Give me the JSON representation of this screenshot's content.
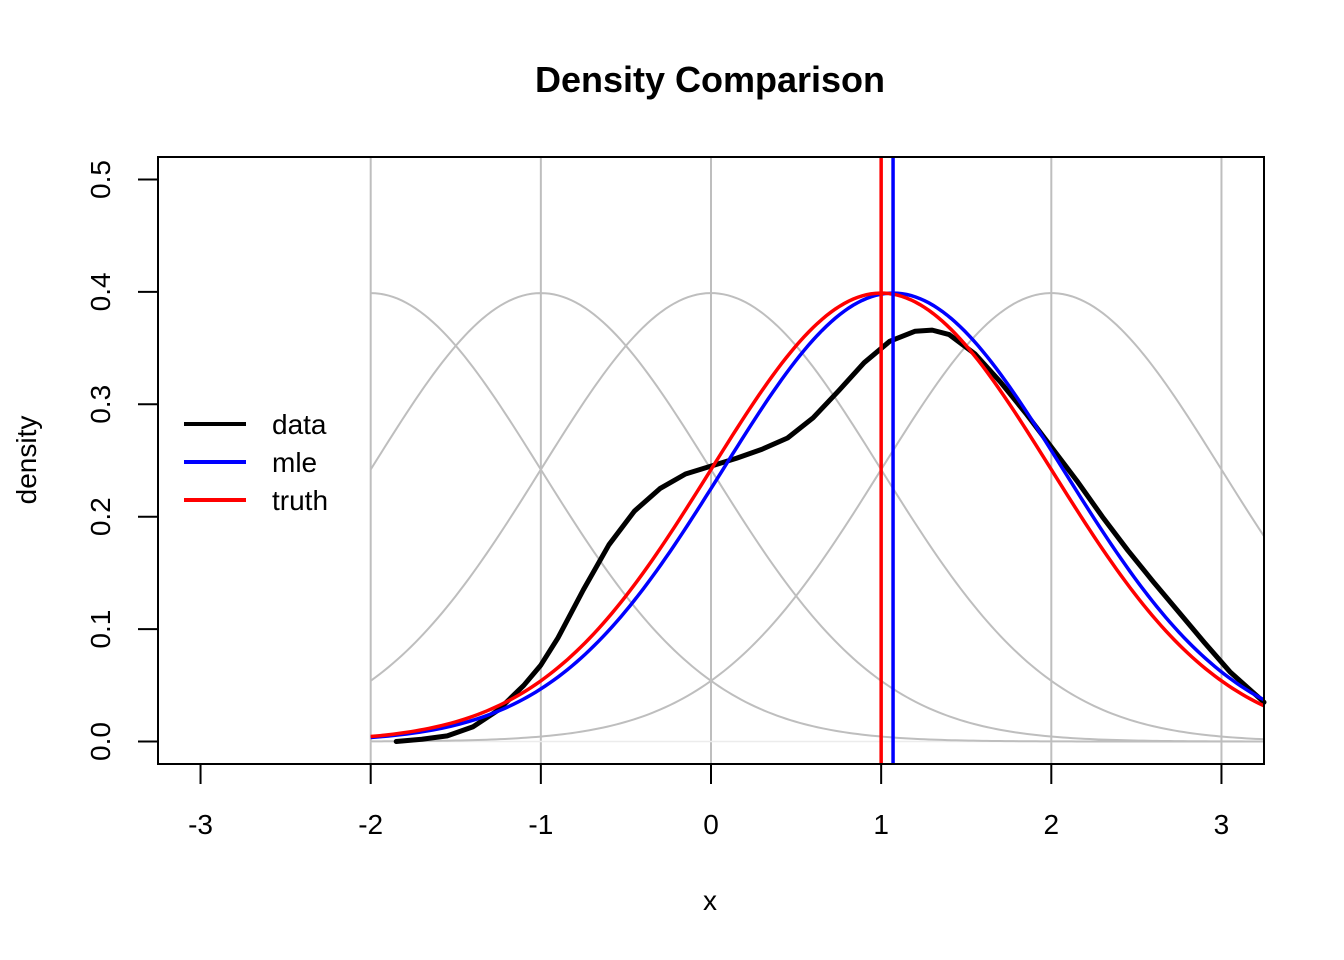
{
  "chart_data": {
    "type": "line",
    "title": "Density Comparison",
    "xlabel": "x",
    "ylabel": "density",
    "xlim": [
      -3.25,
      3.25
    ],
    "ylim": [
      -0.02,
      0.52
    ],
    "xticks": [
      -3,
      -2,
      -1,
      0,
      1,
      2,
      3
    ],
    "xtick_labels": [
      "-3",
      "-2",
      "-1",
      "0",
      "1",
      "2",
      "3"
    ],
    "yticks": [
      0.0,
      0.1,
      0.2,
      0.3,
      0.4,
      0.5
    ],
    "ytick_labels": [
      "0.0",
      "0.1",
      "0.2",
      "0.3",
      "0.4",
      "0.5"
    ],
    "vertical_gridlines": [
      -2,
      -1,
      0,
      1,
      2,
      3
    ],
    "background_normal_means": [
      -2,
      -1,
      0,
      1,
      2
    ],
    "background_curve_x_range": [
      -2,
      3.25
    ],
    "background_color": "#bebebe",
    "legend_position": "left",
    "series": [
      {
        "name": "data",
        "color": "#000000",
        "x": [
          -1.85,
          -1.7,
          -1.55,
          -1.4,
          -1.25,
          -1.1,
          -1.0,
          -0.9,
          -0.75,
          -0.6,
          -0.45,
          -0.3,
          -0.15,
          0.0,
          0.15,
          0.3,
          0.45,
          0.6,
          0.75,
          0.9,
          1.05,
          1.2,
          1.3,
          1.4,
          1.55,
          1.7,
          1.85,
          2.0,
          2.15,
          2.3,
          2.45,
          2.6,
          2.75,
          2.9,
          3.05,
          3.25
        ],
        "y": [
          0.0,
          0.002,
          0.005,
          0.013,
          0.028,
          0.05,
          0.068,
          0.092,
          0.135,
          0.175,
          0.205,
          0.225,
          0.238,
          0.245,
          0.252,
          0.26,
          0.27,
          0.288,
          0.312,
          0.337,
          0.356,
          0.365,
          0.366,
          0.362,
          0.345,
          0.32,
          0.292,
          0.262,
          0.232,
          0.2,
          0.17,
          0.142,
          0.115,
          0.088,
          0.062,
          0.035
        ]
      },
      {
        "name": "mle",
        "color": "#0000ff",
        "mean": 1.07,
        "sd": 1.0,
        "x_range": [
          -2,
          3.25
        ],
        "vline": 1.07
      },
      {
        "name": "truth",
        "color": "#ff0000",
        "mean": 1.0,
        "sd": 1.0,
        "x_range": [
          -2,
          3.25
        ],
        "vline": 1.0
      }
    ]
  }
}
